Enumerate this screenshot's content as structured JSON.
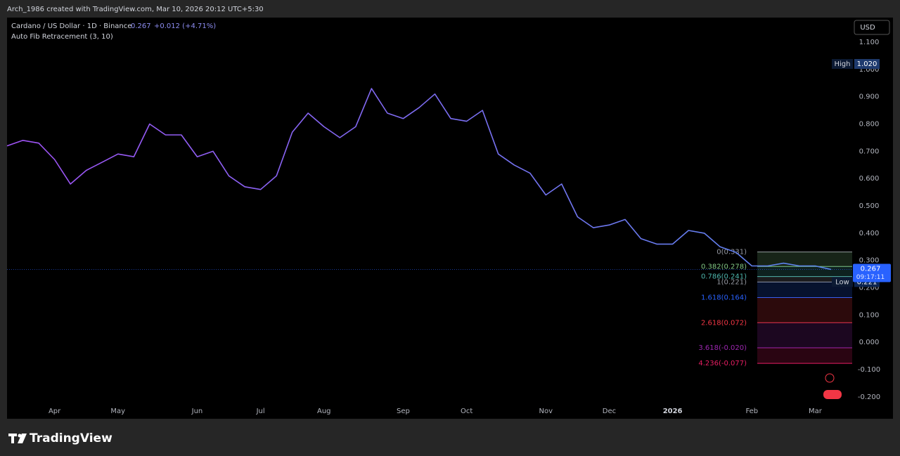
{
  "header": {
    "attribution": "Arch_1986 created with TradingView.com, Mar 10, 2026 20:12 UTC+5:30"
  },
  "chart_data": {
    "type": "line",
    "change": "+0.012 (+4.71%)",
    "indicator": "Auto Fib Retracement (3, 10)",
    "currency": "USD",
    "categories": [
      null,
      null,
      null,
      "Apr",
      null,
      null,
      null,
      "May",
      null,
      null,
      null,
      null,
      "Jun",
      null,
      null,
      null,
      "Jul",
      null,
      null,
      null,
      "Aug",
      null,
      null,
      null,
      null,
      "Sep",
      null,
      null,
      null,
      "Oct",
      null,
      null,
      null,
      null,
      "Nov",
      null,
      null,
      null,
      "Dec",
      null,
      null,
      null,
      "2026",
      null,
      null,
      null,
      null,
      "Feb",
      null,
      null,
      null,
      "Mar",
      null
    ],
    "series": [
      {
        "name": "Cardano / US Dollar · 1D · Binance",
        "color": "#a052f5",
        "color_end": "#5a86ee",
        "values": [
          0.72,
          0.74,
          0.73,
          0.67,
          0.58,
          0.63,
          0.66,
          0.69,
          0.68,
          0.8,
          0.76,
          0.76,
          0.68,
          0.7,
          0.61,
          0.57,
          0.56,
          0.61,
          0.77,
          0.84,
          0.79,
          0.75,
          0.79,
          0.93,
          0.84,
          0.82,
          0.86,
          0.91,
          0.82,
          0.81,
          0.85,
          0.69,
          0.65,
          0.62,
          0.54,
          0.58,
          0.46,
          0.42,
          0.43,
          0.45,
          0.38,
          0.36,
          0.36,
          0.41,
          0.4,
          0.35,
          0.33,
          0.28,
          0.28,
          0.29,
          0.28,
          0.28,
          0.267
        ]
      }
    ],
    "ylim": [
      -0.28,
      1.19
    ],
    "yticks": [
      {
        "value": 1.1,
        "label": "1.100"
      },
      {
        "value": 1.0,
        "label": "1.000"
      },
      {
        "value": 0.9,
        "label": "0.900"
      },
      {
        "value": 0.8,
        "label": "0.800"
      },
      {
        "value": 0.7,
        "label": "0.700"
      },
      {
        "value": 0.6,
        "label": "0.600"
      },
      {
        "value": 0.5,
        "label": "0.500"
      },
      {
        "value": 0.4,
        "label": "0.400"
      },
      {
        "value": 0.3,
        "label": "0.300"
      },
      {
        "value": 0.2,
        "label": "0.200"
      },
      {
        "value": 0.1,
        "label": "0.100"
      },
      {
        "value": 0,
        "label": "0.000"
      },
      {
        "value": -0.1,
        "label": "-0.100"
      },
      {
        "value": -0.2,
        "label": "-0.200"
      }
    ],
    "last_price": {
      "value": 0.267,
      "label": "0.267"
    },
    "countdown": "09:17:11",
    "high": {
      "label": "High",
      "value": 1.02,
      "value_label": "1.020"
    },
    "low": {
      "label": "Low",
      "value": 0.221,
      "value_label": "0.221"
    },
    "fib_levels": [
      {
        "label": "0(0.331)",
        "value": 0.331,
        "color": "#9598a1"
      },
      {
        "label": "0.382(0.278)",
        "value": 0.278,
        "color": "#81c784"
      },
      {
        "label": "0.786(0.241)",
        "value": 0.241,
        "color": "#4db6ac"
      },
      {
        "label": "1(0.221)",
        "value": 0.221,
        "color": "#9598a1"
      },
      {
        "label": "1.618(0.164)",
        "value": 0.164,
        "color": "#2962ff"
      },
      {
        "label": "2.618(0.072)",
        "value": 0.072,
        "color": "#f23645"
      },
      {
        "label": "3.618(-0.020)",
        "value": -0.02,
        "color": "#9c27b0"
      },
      {
        "label": "4.236(-0.077)",
        "value": -0.077,
        "color": "#e91e63"
      }
    ]
  },
  "footer": {
    "brand": "TradingView"
  }
}
